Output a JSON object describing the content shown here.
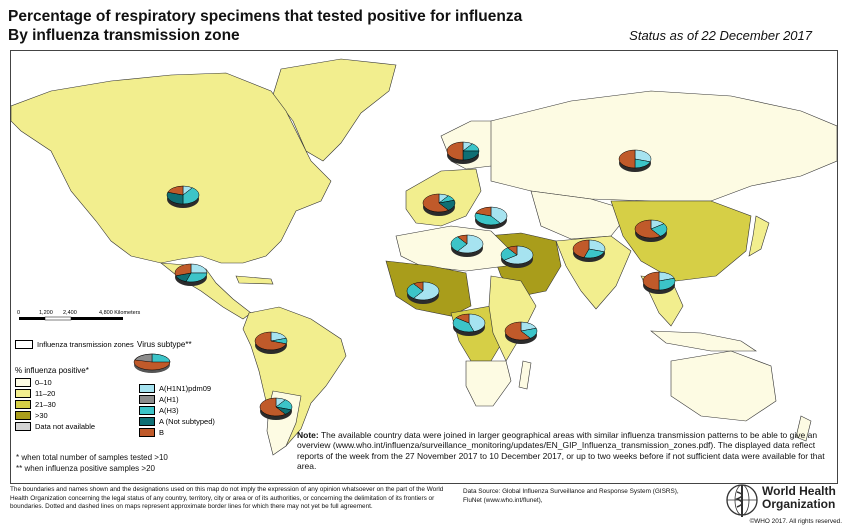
{
  "header": {
    "title_line1": "Percentage of respiratory specimens that tested positive for influenza",
    "title_line2": "By influenza transmission zone",
    "status": "Status as of 22 December 2017"
  },
  "colors": {
    "ocean": "#ffffff",
    "land_no_data": "#fbf8e0",
    "pct_0_10": "#fdfbe3",
    "pct_11_20": "#f2ee8e",
    "pct_21_30": "#d6cf46",
    "pct_gt30": "#a99d1b",
    "not_available": "#d4d4d4",
    "a_h1n1pdm09": "#a6e3f0",
    "a_h1": "#8c8c8c",
    "a_h3": "#3cc4c8",
    "a_not_subtyped": "#0f6f74",
    "b": "#c05a2a"
  },
  "scale_bar": {
    "labels": [
      "0",
      "1,200",
      "2,400",
      "4,800 Kilometers"
    ]
  },
  "legend": {
    "zones_label": "Influenza transmission zones",
    "virus_subtype_label": "Virus subtype**",
    "pct_title": "% influenza positive*",
    "pct_items": [
      {
        "label": "0–10",
        "color": "#fdfbe3"
      },
      {
        "label": "11–20",
        "color": "#f2ee8e"
      },
      {
        "label": "21–30",
        "color": "#d6cf46"
      },
      {
        "label": ">30",
        "color": "#a99d1b"
      },
      {
        "label": "Data not available",
        "color": "#d4d4d4"
      }
    ],
    "subtype_items": [
      {
        "label": "A(H1N1)pdm09",
        "color": "#a6e3f0"
      },
      {
        "label": "A(H1)",
        "color": "#8c8c8c"
      },
      {
        "label": "A(H3)",
        "color": "#3cc4c8"
      },
      {
        "label": "A (Not subtyped)",
        "color": "#0f6f74"
      },
      {
        "label": "B",
        "color": "#c05a2a"
      }
    ]
  },
  "footnotes": {
    "single": "*   when total number of samples tested >10",
    "double": "** when influenza positive samples >20"
  },
  "note": {
    "label": "Note:",
    "text": " The available country data were joined in larger geographical areas with similar influenza transmission patterns to be able to give an overview (www.who.int/influenza/surveillance_monitoring/updates/EN_GIP_Influenza_transmission_zones.pdf). The displayed data reflect reports of the week from the 27 November 2017 to 10 December 2017, or up to two weeks before if not sufficient data were available for that area."
  },
  "disclaimer": "The boundaries and names shown and the designations used on this map do not imply the expression of any opinion whatsoever on the part of the World Health Organization concerning the legal status of any country, territory, city or area or of its authorities, or concerning the delimitation of its frontiers or boundaries. Dotted and dashed lines on maps represent approximate border lines for which there may not yet be full agreement.",
  "source": {
    "line1": "Data Source: Global Influenza Surveillance and Response System (GISRS),",
    "line2": "FluNet (www.who.int/flunet),"
  },
  "organization": {
    "line1": "World Health",
    "line2": "Organization",
    "copyright": "©WHO 2017. All rights reserved."
  },
  "pie_charts": [
    {
      "zone": "North America",
      "slices": [
        {
          "subtype": "A(H1N1)pdm09",
          "pct": 10
        },
        {
          "subtype": "A(H3)",
          "pct": 40
        },
        {
          "subtype": "A (Not subtyped)",
          "pct": 30
        },
        {
          "subtype": "B",
          "pct": 20
        }
      ]
    },
    {
      "zone": "Central America and Caribbean",
      "slices": [
        {
          "subtype": "A(H1N1)pdm09",
          "pct": 25
        },
        {
          "subtype": "A(H3)",
          "pct": 30
        },
        {
          "subtype": "A (Not subtyped)",
          "pct": 15
        },
        {
          "subtype": "B",
          "pct": 30
        }
      ]
    },
    {
      "zone": "Tropical South America",
      "slices": [
        {
          "subtype": "A(H1N1)pdm09",
          "pct": 20
        },
        {
          "subtype": "A(H3)",
          "pct": 10
        },
        {
          "subtype": "B",
          "pct": 70
        }
      ]
    },
    {
      "zone": "Temperate South America",
      "slices": [
        {
          "subtype": "A(H1N1)pdm09",
          "pct": 10
        },
        {
          "subtype": "A(H3)",
          "pct": 20
        },
        {
          "subtype": "A (Not subtyped)",
          "pct": 10
        },
        {
          "subtype": "B",
          "pct": 60
        }
      ]
    },
    {
      "zone": "Northern Europe",
      "slices": [
        {
          "subtype": "A(H1N1)pdm09",
          "pct": 10
        },
        {
          "subtype": "A(H3)",
          "pct": 15
        },
        {
          "subtype": "A (Not subtyped)",
          "pct": 25
        },
        {
          "subtype": "B",
          "pct": 50
        }
      ]
    },
    {
      "zone": "South West Europe",
      "slices": [
        {
          "subtype": "A(H1N1)pdm09",
          "pct": 10
        },
        {
          "subtype": "A(H3)",
          "pct": 10
        },
        {
          "subtype": "A (Not subtyped)",
          "pct": 20
        },
        {
          "subtype": "B",
          "pct": 60
        }
      ]
    },
    {
      "zone": "Eastern Europe",
      "slices": [
        {
          "subtype": "A(H1N1)pdm09",
          "pct": 30
        },
        {
          "subtype": "A(H3)",
          "pct": 20
        },
        {
          "subtype": "B",
          "pct": 50
        }
      ]
    },
    {
      "zone": "Central Asia",
      "slices": [
        {
          "subtype": "A(H1N1)pdm09",
          "pct": 40
        },
        {
          "subtype": "A(H3)",
          "pct": 40
        },
        {
          "subtype": "B",
          "pct": 20
        }
      ]
    },
    {
      "zone": "Northern Africa",
      "slices": [
        {
          "subtype": "A(H1N1)pdm09",
          "pct": 60
        },
        {
          "subtype": "A(H3)",
          "pct": 30
        },
        {
          "subtype": "B",
          "pct": 10
        }
      ]
    },
    {
      "zone": "Western Asia",
      "slices": [
        {
          "subtype": "A(H1N1)pdm09",
          "pct": 65
        },
        {
          "subtype": "A(H3)",
          "pct": 25
        },
        {
          "subtype": "B",
          "pct": 10
        }
      ]
    },
    {
      "zone": "Southern Asia",
      "slices": [
        {
          "subtype": "A(H1N1)pdm09",
          "pct": 30
        },
        {
          "subtype": "A(H3)",
          "pct": 25
        },
        {
          "subtype": "B",
          "pct": 45
        }
      ]
    },
    {
      "zone": "Eastern Asia",
      "slices": [
        {
          "subtype": "A(H1N1)pdm09",
          "pct": 15
        },
        {
          "subtype": "A(H3)",
          "pct": 25
        },
        {
          "subtype": "B",
          "pct": 60
        }
      ]
    },
    {
      "zone": "South East Asia",
      "slices": [
        {
          "subtype": "A(H1N1)pdm09",
          "pct": 20
        },
        {
          "subtype": "A(H3)",
          "pct": 30
        },
        {
          "subtype": "B",
          "pct": 50
        }
      ]
    },
    {
      "zone": "Western Africa",
      "slices": [
        {
          "subtype": "A(H1N1)pdm09",
          "pct": 60
        },
        {
          "subtype": "A(H3)",
          "pct": 30
        },
        {
          "subtype": "B",
          "pct": 10
        }
      ]
    },
    {
      "zone": "Middle Africa",
      "slices": [
        {
          "subtype": "A(H1N1)pdm09",
          "pct": 45
        },
        {
          "subtype": "A(H3)",
          "pct": 40
        },
        {
          "subtype": "B",
          "pct": 15
        }
      ]
    },
    {
      "zone": "Eastern Africa",
      "slices": [
        {
          "subtype": "A(H1N1)pdm09",
          "pct": 20
        },
        {
          "subtype": "A(H3)",
          "pct": 20
        },
        {
          "subtype": "B",
          "pct": 60
        }
      ]
    }
  ]
}
